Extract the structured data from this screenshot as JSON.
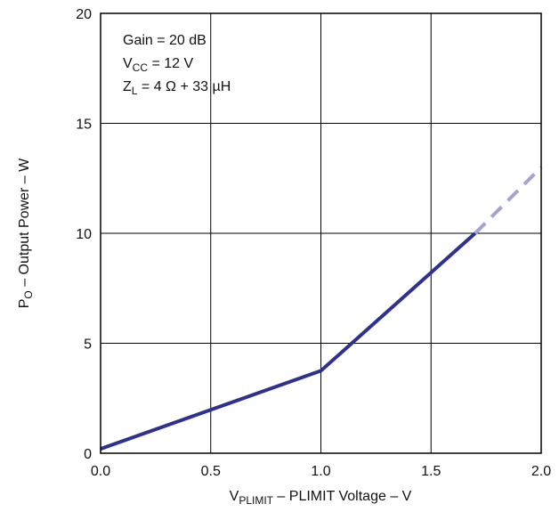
{
  "chart_data": {
    "type": "line",
    "xlim": [
      0.0,
      2.0
    ],
    "ylim": [
      0,
      20
    ],
    "xticks": [
      "0.0",
      "0.5",
      "1.0",
      "1.5",
      "2.0"
    ],
    "yticks": [
      "0",
      "5",
      "10",
      "15",
      "20"
    ],
    "grid": true,
    "xlabel": {
      "main": "V",
      "sub": "PLIMIT",
      "rest": " – PLIMIT Voltage – V"
    },
    "ylabel": {
      "main": "P",
      "sub": "O",
      "rest": " – Output Power – W"
    },
    "annotations": {
      "line1": "Gain = 20 dB",
      "line2_main": "V",
      "line2_sub": "CC",
      "line2_rest": " = 12 V",
      "line3_main": "Z",
      "line3_sub": "L",
      "line3_rest": " = 4 Ω + 33 µH"
    },
    "series": [
      {
        "style": "solid",
        "color": "#2e3192",
        "x": [
          0.0,
          1.0,
          1.7
        ],
        "y": [
          0.2,
          3.75,
          10.0
        ]
      },
      {
        "style": "dashed",
        "color": "#a3a3d6",
        "x": [
          1.7,
          2.0
        ],
        "y": [
          10.0,
          13.0
        ]
      }
    ]
  }
}
